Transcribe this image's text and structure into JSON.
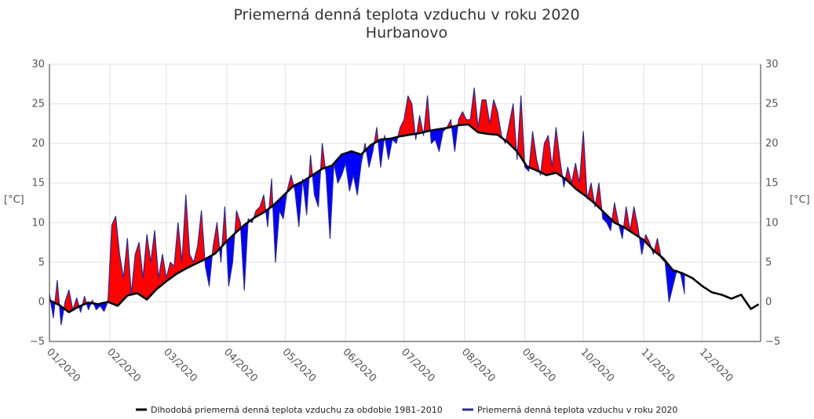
{
  "chart_data": {
    "type": "area",
    "title": "Priemerná denná teplota vzduchu v roku 2020",
    "subtitle": "Hurbanovo",
    "ylabel_left": "[°C]",
    "ylabel_right": "[°C]",
    "ylim": [
      -5,
      30
    ],
    "yticks": [
      "30",
      "25",
      "20",
      "15",
      "10",
      "5",
      "0",
      "−5"
    ],
    "ytick_values": [
      30,
      25,
      20,
      15,
      10,
      5,
      0,
      -5
    ],
    "xlim": [
      0,
      365
    ],
    "month_labels": [
      "01/2020",
      "02/2020",
      "03/2020",
      "04/2020",
      "05/2020",
      "06/2020",
      "07/2020",
      "08/2020",
      "09/2020",
      "10/2020",
      "11/2020",
      "12/2020"
    ],
    "month_starts": [
      0,
      31,
      60,
      91,
      121,
      152,
      182,
      213,
      244,
      274,
      305,
      335
    ],
    "grid": true,
    "legend_position": "bottom",
    "colors": {
      "above": "#ff0000",
      "below": "#0000ff",
      "series_line": "#2b2b8c",
      "normal_line": "#000000",
      "grid": "#e0e0e0",
      "axis": "#333333"
    },
    "series": [
      {
        "name": "Dlhodobá priemerná denná teplota vzduchu za obdobie 1981–2010",
        "x": [
          0,
          5,
          10,
          15,
          20,
          25,
          30,
          35,
          40,
          45,
          50,
          55,
          60,
          65,
          70,
          75,
          80,
          85,
          90,
          95,
          100,
          105,
          110,
          115,
          120,
          125,
          130,
          135,
          140,
          145,
          150,
          155,
          160,
          165,
          170,
          175,
          180,
          185,
          190,
          195,
          200,
          205,
          210,
          215,
          220,
          225,
          230,
          235,
          240,
          245,
          250,
          255,
          260,
          265,
          270,
          275,
          280,
          285,
          290,
          295,
          300,
          305,
          310,
          315,
          320,
          325,
          330,
          335,
          340,
          345,
          350,
          355,
          360,
          364
        ],
        "y": [
          0.2,
          -0.4,
          -1.3,
          -0.6,
          -0.1,
          -0.3,
          0.0,
          -0.5,
          0.8,
          1.1,
          0.3,
          1.6,
          2.6,
          3.5,
          4.2,
          4.8,
          5.4,
          6.1,
          7.4,
          8.6,
          9.7,
          10.6,
          11.3,
          12.2,
          13.4,
          14.6,
          15.2,
          16.0,
          16.8,
          17.2,
          18.6,
          19.0,
          18.6,
          19.8,
          20.5,
          20.6,
          20.9,
          21.1,
          21.3,
          21.6,
          21.8,
          22.0,
          22.3,
          22.4,
          21.4,
          21.2,
          21.1,
          20.2,
          19.0,
          17.1,
          16.6,
          16.0,
          16.3,
          15.5,
          14.3,
          13.4,
          12.4,
          11.2,
          10.0,
          9.4,
          8.6,
          7.8,
          6.5,
          5.5,
          4.0,
          3.6,
          3.0,
          2.0,
          1.2,
          0.9,
          0.4,
          0.9,
          -0.9,
          -0.3
        ]
      },
      {
        "name": "Priemerná denná teplota vzduchu v roku 2020",
        "x": [
          0,
          2,
          4,
          6,
          8,
          10,
          12,
          14,
          16,
          18,
          20,
          22,
          24,
          26,
          28,
          30,
          32,
          34,
          36,
          38,
          40,
          42,
          44,
          46,
          48,
          50,
          52,
          54,
          56,
          58,
          60,
          62,
          64,
          66,
          68,
          70,
          72,
          74,
          76,
          78,
          80,
          82,
          84,
          86,
          88,
          90,
          92,
          94,
          96,
          98,
          100,
          102,
          104,
          106,
          108,
          110,
          112,
          114,
          116,
          118,
          120,
          122,
          124,
          126,
          128,
          130,
          132,
          134,
          136,
          138,
          140,
          142,
          144,
          146,
          148,
          150,
          152,
          154,
          156,
          158,
          160,
          162,
          164,
          166,
          168,
          170,
          172,
          174,
          176,
          178,
          180,
          182,
          184,
          186,
          188,
          190,
          192,
          194,
          196,
          198,
          200,
          202,
          204,
          206,
          208,
          210,
          212,
          214,
          216,
          218,
          220,
          222,
          224,
          226,
          228,
          230,
          232,
          234,
          236,
          238,
          240,
          242,
          244,
          246,
          248,
          250,
          252,
          254,
          256,
          258,
          260,
          262,
          264,
          266,
          268,
          270,
          272,
          274,
          276,
          278,
          280,
          282,
          284,
          286,
          288,
          290,
          292,
          294,
          296,
          298,
          300,
          302,
          304,
          306,
          308,
          310,
          312,
          314,
          316,
          318,
          320,
          322,
          324,
          326
        ],
        "y": [
          1.0,
          -2.0,
          2.7,
          -2.9,
          0.0,
          1.5,
          -1.0,
          0.5,
          -1.3,
          0.7,
          -1.0,
          0.2,
          -1.0,
          -0.5,
          -1.2,
          0.0,
          9.7,
          10.8,
          6.0,
          3.0,
          8.0,
          1.0,
          6.0,
          7.5,
          3.0,
          8.5,
          5.0,
          9.0,
          3.0,
          6.0,
          3.0,
          5.0,
          4.5,
          10.0,
          5.0,
          13.5,
          6.0,
          5.0,
          7.0,
          11.5,
          4.5,
          2.0,
          7.0,
          10.0,
          5.0,
          12.0,
          2.0,
          5.0,
          11.5,
          10.0,
          1.5,
          10.5,
          10.0,
          11.5,
          12.0,
          13.5,
          9.5,
          15.5,
          5.0,
          11.5,
          10.5,
          14.0,
          16.0,
          14.0,
          9.5,
          15.5,
          11.0,
          18.5,
          13.5,
          12.0,
          20.0,
          16.0,
          8.0,
          17.5,
          15.0,
          16.0,
          17.5,
          14.0,
          16.0,
          13.5,
          17.5,
          20.0,
          17.0,
          19.0,
          22.0,
          17.0,
          21.0,
          18.0,
          20.5,
          20.0,
          22.0,
          23.0,
          26.0,
          25.0,
          20.5,
          23.5,
          21.0,
          26.0,
          20.0,
          20.5,
          19.0,
          21.5,
          22.0,
          23.0,
          19.0,
          23.0,
          24.0,
          23.0,
          23.0,
          27.0,
          22.0,
          25.5,
          25.5,
          22.5,
          25.5,
          24.0,
          21.0,
          20.0,
          22.5,
          25.0,
          18.0,
          26.0,
          17.0,
          16.5,
          21.5,
          18.0,
          16.0,
          20.0,
          21.0,
          17.0,
          22.0,
          18.0,
          14.5,
          17.0,
          15.0,
          17.5,
          15.0,
          21.5,
          13.0,
          15.0,
          12.0,
          15.0,
          10.5,
          10.0,
          9.0,
          12.5,
          10.0,
          8.0,
          12.0,
          9.0,
          12.0,
          9.5,
          6.0,
          8.5,
          7.5,
          6.0,
          8.0,
          5.5,
          5.0,
          0.0,
          2.0,
          4.0,
          3.5,
          1.0
        ]
      }
    ]
  }
}
